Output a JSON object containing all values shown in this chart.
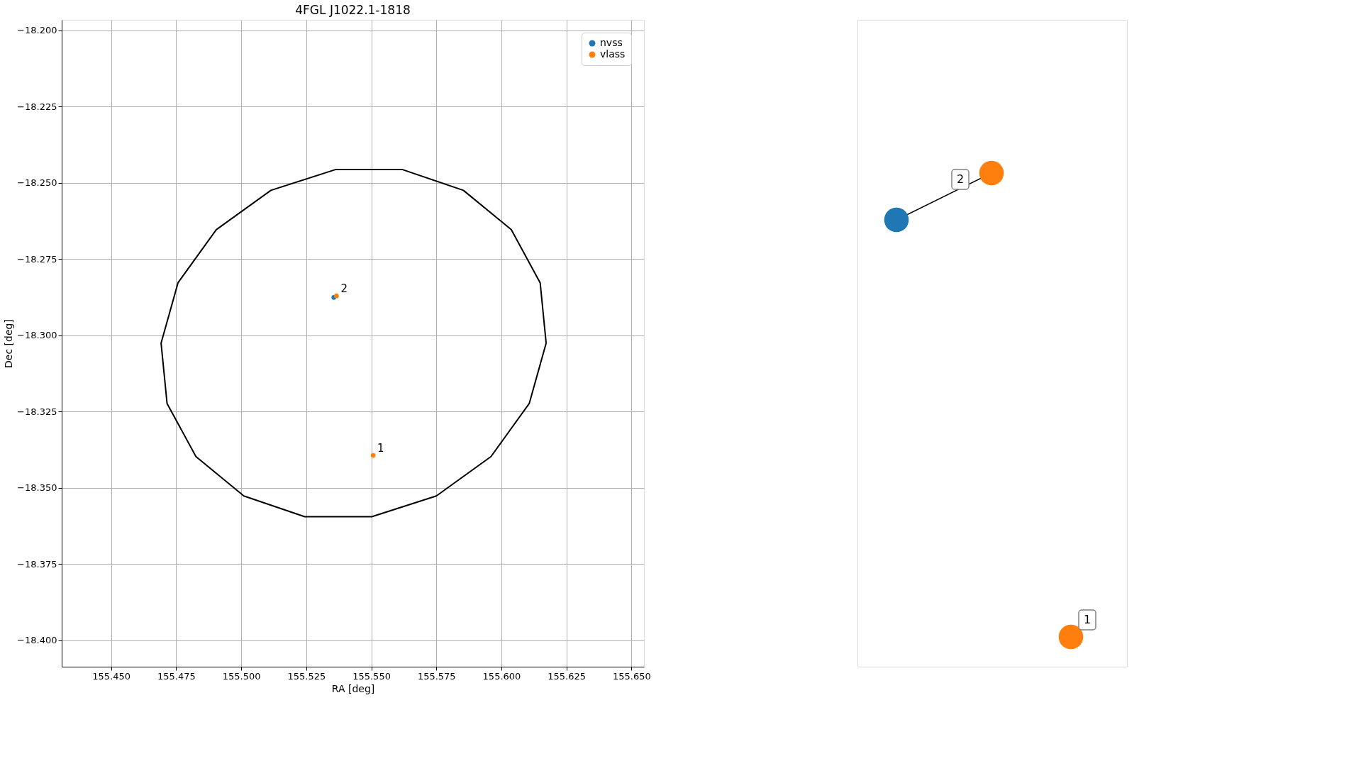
{
  "chart_data": [
    {
      "type": "scatter",
      "title": "4FGL J1022.1-1818",
      "xlabel": "RA [deg]",
      "ylabel": "Dec [deg]",
      "xlim": [
        155.431,
        155.6548
      ],
      "ylim": [
        -18.4087,
        -18.1966
      ],
      "xticks": [
        {
          "value": 155.45,
          "label": "155.450"
        },
        {
          "value": 155.475,
          "label": "155.475"
        },
        {
          "value": 155.5,
          "label": "155.500"
        },
        {
          "value": 155.525,
          "label": "155.525"
        },
        {
          "value": 155.55,
          "label": "155.550"
        },
        {
          "value": 155.575,
          "label": "155.575"
        },
        {
          "value": 155.6,
          "label": "155.600"
        },
        {
          "value": 155.625,
          "label": "155.625"
        },
        {
          "value": 155.65,
          "label": "155.650"
        }
      ],
      "yticks": [
        {
          "value": -18.2,
          "label": "−18.200"
        },
        {
          "value": -18.225,
          "label": "−18.225"
        },
        {
          "value": -18.25,
          "label": "−18.250"
        },
        {
          "value": -18.275,
          "label": "−18.275"
        },
        {
          "value": -18.3,
          "label": "−18.300"
        },
        {
          "value": -18.325,
          "label": "−18.325"
        },
        {
          "value": -18.35,
          "label": "−18.350"
        },
        {
          "value": -18.375,
          "label": "−18.375"
        },
        {
          "value": -18.4,
          "label": "−18.400"
        }
      ],
      "grid": true,
      "legend": "top right",
      "marker": "circle",
      "series": [
        {
          "name": "nvss",
          "color": "#1f77b4",
          "x": [
            155.5356
          ],
          "values": [
            -18.2876
          ]
        },
        {
          "name": "vlass",
          "color": "#ff7f0e",
          "x": [
            155.5366,
            155.5507
          ],
          "values": [
            -18.2871,
            -18.3394
          ]
        }
      ],
      "annotations": [
        {
          "text": "2",
          "x": 155.5366,
          "y": -18.2871
        },
        {
          "text": "1",
          "x": 155.5507,
          "y": -18.3394
        }
      ]
    },
    {
      "type": "other",
      "annotations": [
        "2",
        "1"
      ]
    }
  ]
}
